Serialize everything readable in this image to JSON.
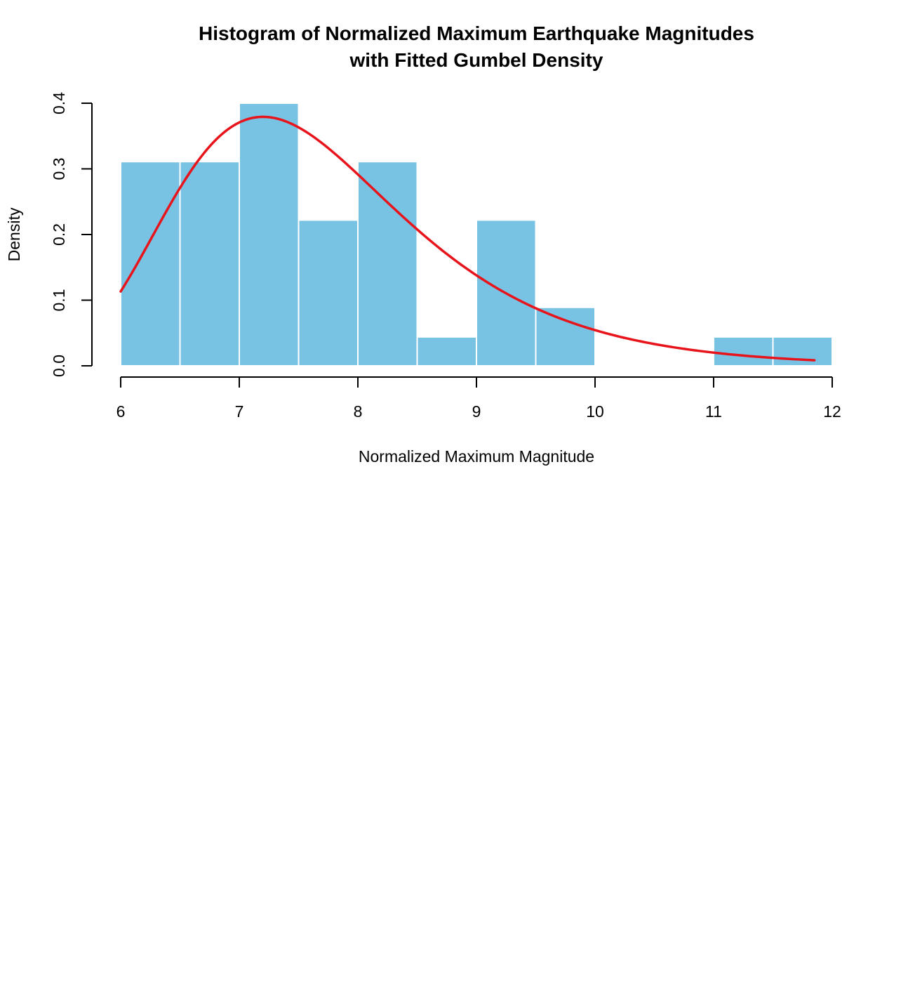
{
  "chart_data": {
    "type": "bar",
    "title": [
      "Histogram of Normalized Maximum Earthquake Magnitudes",
      "with Fitted Gumbel Density"
    ],
    "xlabel": "Normalized Maximum Magnitude",
    "ylabel": "Density",
    "xlim": [
      6,
      12
    ],
    "ylim": [
      0,
      0.4
    ],
    "x_ticks": [
      6,
      7,
      8,
      9,
      10,
      11,
      12
    ],
    "x_tick_labels": [
      "6",
      "7",
      "8",
      "9",
      "10",
      "11",
      "12"
    ],
    "y_ticks": [
      0,
      0.1,
      0.2,
      0.3,
      0.4
    ],
    "y_tick_labels": [
      "0.0",
      "0.1",
      "0.2",
      "0.3",
      "0.4"
    ],
    "histogram": {
      "bin_edges": [
        6.0,
        6.5,
        7.0,
        7.5,
        8.0,
        8.5,
        9.0,
        9.5,
        10.0,
        10.5,
        11.0,
        11.5,
        12.0
      ],
      "density": [
        0.311,
        0.311,
        0.4,
        0.222,
        0.311,
        0.044,
        0.222,
        0.089,
        0,
        0,
        0.044,
        0.044
      ],
      "fill_color": "#78C2E4",
      "edge_color": "#ffffff"
    },
    "curve": {
      "name": "Fitted Gumbel Density",
      "distribution": "gumbel",
      "location": 7.2,
      "scale": 0.97,
      "x_range": [
        6.0,
        11.85
      ],
      "color": "#E8141B"
    },
    "grid": false,
    "legend": "none"
  }
}
